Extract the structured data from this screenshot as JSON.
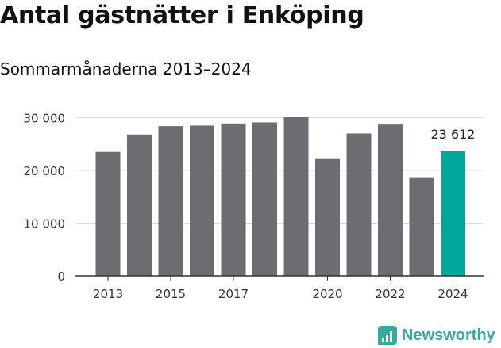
{
  "header": {
    "title": "Antal gästnätter i Enköping",
    "subtitle": "Sommarmånaderna 2013–2024"
  },
  "brand": {
    "name": "Newsworthy",
    "color": "#3aa89b"
  },
  "chart_data": {
    "type": "bar",
    "title": "Antal gästnätter i Enköping",
    "subtitle": "Sommarmånaderna 2013–2024",
    "xlabel": "",
    "ylabel": "",
    "categories": [
      "2013",
      "2014",
      "2015",
      "2016",
      "2017",
      "2018",
      "2019",
      "2020",
      "2021",
      "2022",
      "2023",
      "2024"
    ],
    "x_tick_labels": [
      "2013",
      "",
      "2015",
      "",
      "2017",
      "",
      "",
      "2020",
      "",
      "2022",
      "",
      "2024"
    ],
    "values": [
      23500,
      26800,
      28400,
      28500,
      28900,
      29100,
      30200,
      22300,
      27000,
      28700,
      18700,
      23612
    ],
    "y_ticks": [
      0,
      10000,
      20000,
      30000
    ],
    "y_tick_labels": [
      "0",
      "10 000",
      "20 000",
      "30 000"
    ],
    "ylim": [
      0,
      30000
    ],
    "grid": true,
    "legend": "none",
    "data_labels": [
      {
        "category": "2024",
        "label": "23 612"
      }
    ],
    "highlight": {
      "category": "2024",
      "color": "#00a79d"
    },
    "bar_color": "#6d6c71",
    "grid_color": "#dddddd",
    "axis_color": "#333333"
  }
}
